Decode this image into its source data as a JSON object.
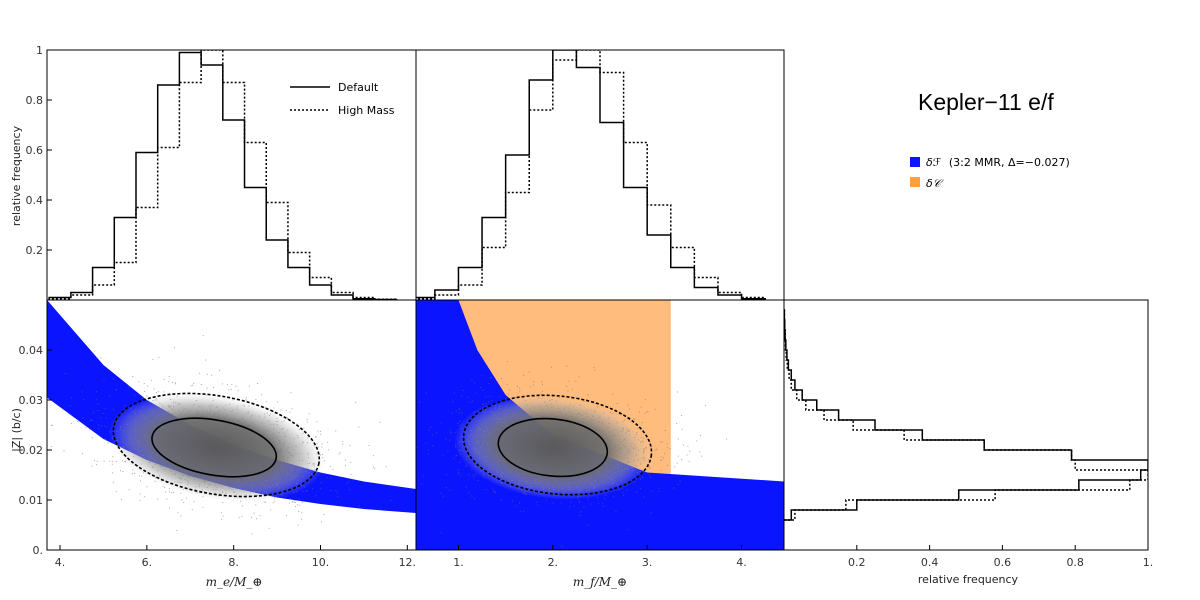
{
  "chart_data": [
    {
      "id": "hist_me",
      "type": "histogram",
      "ylabel": "relative frequency",
      "xlim": [
        3.7,
        12.2
      ],
      "ylim": [
        0,
        1.0
      ],
      "yticks": [
        "0.2",
        "0.4",
        "0.6",
        "0.8",
        "1"
      ],
      "legend": {
        "placement": "top-right",
        "entries": [
          {
            "name": "Default",
            "style": "solid"
          },
          {
            "name": "High Mass",
            "style": "dotted"
          }
        ]
      },
      "series": [
        {
          "name": "Default",
          "style": "solid",
          "edges": [
            3.75,
            4.25,
            4.75,
            5.25,
            5.75,
            6.25,
            6.75,
            7.25,
            7.75,
            8.25,
            8.75,
            9.25,
            9.75,
            10.25,
            10.75,
            11.25,
            11.75
          ],
          "values": [
            0.01,
            0.03,
            0.13,
            0.33,
            0.59,
            0.86,
            0.99,
            0.94,
            0.72,
            0.45,
            0.24,
            0.13,
            0.06,
            0.02,
            0.005,
            0.002
          ]
        },
        {
          "name": "High Mass",
          "style": "dotted",
          "edges": [
            3.75,
            4.25,
            4.75,
            5.25,
            5.75,
            6.25,
            6.75,
            7.25,
            7.75,
            8.25,
            8.75,
            9.25,
            9.75,
            10.25,
            10.75,
            11.25,
            11.75
          ],
          "values": [
            0.005,
            0.02,
            0.06,
            0.15,
            0.37,
            0.61,
            0.87,
            1.0,
            0.87,
            0.63,
            0.39,
            0.19,
            0.09,
            0.03,
            0.01,
            0.003
          ]
        }
      ]
    },
    {
      "id": "hist_mf",
      "type": "histogram",
      "xlim": [
        0.55,
        4.45
      ],
      "ylim": [
        0,
        1.0
      ],
      "series": [
        {
          "name": "Default",
          "style": "solid",
          "edges": [
            0.5,
            0.75,
            1.0,
            1.25,
            1.5,
            1.75,
            2.0,
            2.25,
            2.5,
            2.75,
            3.0,
            3.25,
            3.5,
            3.75,
            4.0,
            4.25
          ],
          "values": [
            0.01,
            0.04,
            0.13,
            0.33,
            0.58,
            0.88,
            1.0,
            0.93,
            0.71,
            0.45,
            0.26,
            0.13,
            0.05,
            0.02,
            0.005
          ]
        },
        {
          "name": "High Mass",
          "style": "dotted",
          "edges": [
            0.5,
            0.75,
            1.0,
            1.25,
            1.5,
            1.75,
            2.0,
            2.25,
            2.5,
            2.75,
            3.0,
            3.25,
            3.5,
            3.75,
            4.0,
            4.25
          ],
          "values": [
            0.005,
            0.02,
            0.06,
            0.21,
            0.43,
            0.76,
            0.96,
            1.0,
            0.91,
            0.63,
            0.38,
            0.21,
            0.09,
            0.03,
            0.01
          ]
        }
      ]
    },
    {
      "id": "scatter_me",
      "type": "scatter",
      "xlabel": "m_e/M_⊕",
      "ylabel": "|Z| (b/c)",
      "xlim": [
        3.7,
        12.2
      ],
      "ylim": [
        0,
        0.05
      ],
      "xticks": [
        "4.",
        "6.",
        "8.",
        "10.",
        "12."
      ],
      "yticks": [
        "0.",
        "0.01",
        "0.02",
        "0.03",
        "0.04"
      ],
      "blue_band": {
        "x": [
          3.7,
          5.0,
          6.0,
          7.0,
          8.0,
          9.0,
          10.0,
          11.0,
          12.2
        ],
        "upper": [
          0.05,
          0.037,
          0.03,
          0.025,
          0.021,
          0.018,
          0.0155,
          0.0137,
          0.0122
        ],
        "lower": [
          0.0305,
          0.0222,
          0.018,
          0.0148,
          0.0124,
          0.0105,
          0.0092,
          0.0082,
          0.0074
        ]
      },
      "cloud_center": [
        7.6,
        0.0205
      ],
      "contour_inner": {
        "center": [
          7.55,
          0.0205
        ],
        "rx": 1.45,
        "ry": 0.0055
      },
      "contour_outer": {
        "center": [
          7.6,
          0.021
        ],
        "rx": 2.4,
        "ry": 0.0098
      }
    },
    {
      "id": "scatter_mf",
      "type": "scatter",
      "xlabel": "m_f/M_⊕",
      "xlim": [
        0.55,
        4.45
      ],
      "ylim": [
        0,
        0.05
      ],
      "xticks": [
        "1.",
        "2.",
        "3.",
        "4."
      ],
      "blue_region": {
        "x": [
          0.55,
          1.0,
          1.2,
          1.5,
          2.0,
          3.0,
          4.45
        ],
        "upper": [
          0.05,
          0.05,
          0.04,
          0.031,
          0.023,
          0.0155,
          0.0137
        ]
      },
      "orange_region": {
        "xmin": 1.0,
        "xmax": 3.25,
        "ymax": 0.05
      },
      "cloud_center": [
        2.0,
        0.0205
      ],
      "contour_inner": {
        "center": [
          2.0,
          0.0205
        ],
        "rx": 0.58,
        "ry": 0.0057
      },
      "contour_outer": {
        "center": [
          2.05,
          0.021
        ],
        "rx": 1.0,
        "ry": 0.0098
      }
    },
    {
      "id": "hist_z",
      "type": "histogram",
      "orientation": "horizontal",
      "xlabel": "relative frequency",
      "xlim": [
        0,
        1.0
      ],
      "ylim": [
        0,
        0.05
      ],
      "xticks": [
        "0.2",
        "0.4",
        "0.6",
        "0.8",
        "1."
      ],
      "series": [
        {
          "name": "Default",
          "style": "solid",
          "edges": [
            0.006,
            0.008,
            0.01,
            0.012,
            0.014,
            0.016,
            0.018,
            0.02,
            0.022,
            0.024,
            0.026,
            0.028,
            0.03,
            0.032,
            0.034,
            0.036,
            0.038,
            0.04,
            0.042,
            0.044,
            0.046,
            0.048
          ],
          "values": [
            0.02,
            0.2,
            0.48,
            0.81,
            0.98,
            1.0,
            0.79,
            0.55,
            0.38,
            0.25,
            0.15,
            0.09,
            0.05,
            0.03,
            0.02,
            0.012,
            0.008,
            0.005,
            0.003,
            0.002,
            0.001
          ]
        },
        {
          "name": "High Mass",
          "style": "dotted",
          "edges": [
            0.006,
            0.008,
            0.01,
            0.012,
            0.014,
            0.016,
            0.018,
            0.02,
            0.022,
            0.024,
            0.026,
            0.028,
            0.03,
            0.032,
            0.034,
            0.036,
            0.038,
            0.04,
            0.042,
            0.044,
            0.046,
            0.048
          ],
          "values": [
            0.03,
            0.17,
            0.58,
            0.95,
            1.0,
            0.8,
            0.79,
            0.55,
            0.33,
            0.19,
            0.11,
            0.06,
            0.035,
            0.02,
            0.014,
            0.009,
            0.006,
            0.004,
            0.003,
            0.002,
            0.001
          ]
        }
      ]
    }
  ],
  "title": "Kepler−11 e/f",
  "legend_regions": [
    {
      "label": "(3:2 MMR, Δ=−0.027)",
      "symbol": "δℱ",
      "color": "#0a14ff"
    },
    {
      "label": "",
      "symbol": "δ𝒞",
      "color": "#ffa040"
    }
  ],
  "colors": {
    "blue": "#0a14ff",
    "orange": "#ffbc7d",
    "cloud": "#606060"
  }
}
